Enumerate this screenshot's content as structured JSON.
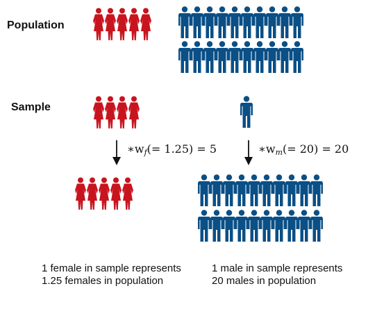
{
  "labels": {
    "population": "Population",
    "sample": "Sample"
  },
  "weights": {
    "female": {
      "prefix": "∗w",
      "sub": "f",
      "expr": "(= 1.25) = 5"
    },
    "male": {
      "prefix": "∗w",
      "sub": "m",
      "expr": "(= 20) = 20"
    }
  },
  "captions": {
    "female_line1": "1 female in sample represents",
    "female_line2": "1.25 females in population",
    "male_line1": "1 male in sample represents",
    "male_line2": "20 males in population"
  },
  "counts": {
    "population_female": 5,
    "population_male": 20,
    "sample_female": 4,
    "sample_male": 1,
    "weighted_female": 5,
    "weighted_male": 20
  },
  "colors": {
    "female": "#c8141e",
    "male": "#0a4f86",
    "arrow": "#111111"
  }
}
